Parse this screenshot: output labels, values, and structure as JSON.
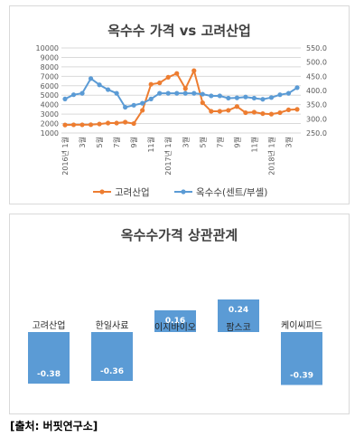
{
  "chart_data": [
    {
      "type": "line",
      "title": "옥수수 가격 vs 고려산업",
      "y_left_ticks": [
        "10000",
        "9000",
        "8000",
        "7000",
        "6000",
        "5000",
        "4000",
        "3000",
        "2000",
        "1000"
      ],
      "y_left_lim": [
        1000,
        10000
      ],
      "y_right_ticks": [
        "550.0",
        "500.0",
        "450.0",
        "400.0",
        "350.0",
        "300.0",
        "250.0"
      ],
      "y_right_lim": [
        250,
        550
      ],
      "x_tick_labels": [
        "2016년 1월",
        "3월",
        "5월",
        "7월",
        "9월",
        "11월",
        "2017년 1월",
        "3월",
        "5월",
        "7월",
        "9월",
        "11월",
        "2018년 1월",
        "3월"
      ],
      "x_count": 28,
      "grid": "horizontal",
      "legend_position": "bottom",
      "series": [
        {
          "name": "고려산업",
          "axis": "left",
          "color": "#ed7d31",
          "values": [
            1850,
            1870,
            1870,
            1880,
            1950,
            2050,
            2050,
            2150,
            2000,
            3400,
            6150,
            6300,
            6900,
            7300,
            5700,
            7600,
            4200,
            3300,
            3300,
            3400,
            3800,
            3150,
            3200,
            3050,
            3000,
            3150,
            3450,
            3500
          ]
        },
        {
          "name": "옥수수(센트/부셸)",
          "axis": "right",
          "color": "#5b9bd5",
          "values": [
            370,
            385,
            390,
            442,
            420,
            403,
            390,
            341,
            348,
            355,
            370,
            390,
            390,
            390,
            390,
            390,
            387,
            381,
            381,
            373,
            374,
            377,
            373,
            369,
            375,
            385,
            390,
            410
          ]
        }
      ]
    },
    {
      "type": "bar",
      "title": "옥수수가격 상관관계",
      "categories": [
        "고려산업",
        "한일사료",
        "이지바이오",
        "팜스코",
        "케이씨피드"
      ],
      "values": [
        -0.38,
        -0.36,
        0.16,
        0.24,
        -0.39
      ],
      "value_labels": [
        "-0.38",
        "-0.36",
        "0.16",
        "0.24",
        "-0.39"
      ],
      "color": "#5b9bd5"
    }
  ],
  "source_text": "[출처: 버핏연구소]"
}
